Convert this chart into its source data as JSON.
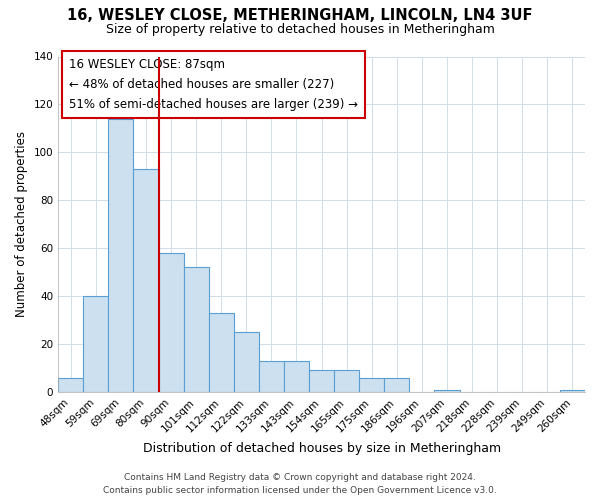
{
  "title": "16, WESLEY CLOSE, METHERINGHAM, LINCOLN, LN4 3UF",
  "subtitle": "Size of property relative to detached houses in Metheringham",
  "xlabel": "Distribution of detached houses by size in Metheringham",
  "ylabel": "Number of detached properties",
  "bar_labels": [
    "48sqm",
    "59sqm",
    "69sqm",
    "80sqm",
    "90sqm",
    "101sqm",
    "112sqm",
    "122sqm",
    "133sqm",
    "143sqm",
    "154sqm",
    "165sqm",
    "175sqm",
    "186sqm",
    "196sqm",
    "207sqm",
    "218sqm",
    "228sqm",
    "239sqm",
    "249sqm",
    "260sqm"
  ],
  "bar_values": [
    6,
    40,
    114,
    93,
    58,
    52,
    33,
    25,
    13,
    13,
    9,
    9,
    6,
    6,
    0,
    1,
    0,
    0,
    0,
    0,
    1
  ],
  "bar_color": "#cce0f0",
  "bar_edge_color": "#5a9fd4",
  "vline_color": "#cc0000",
  "ylim": [
    0,
    140
  ],
  "yticks": [
    0,
    20,
    40,
    60,
    80,
    100,
    120,
    140
  ],
  "annotation_title": "16 WESLEY CLOSE: 87sqm",
  "annotation_line1": "← 48% of detached houses are smaller (227)",
  "annotation_line2": "51% of semi-detached houses are larger (239) →",
  "annotation_box_color": "#ffffff",
  "annotation_box_edge_color": "#cc0000",
  "footer_line1": "Contains HM Land Registry data © Crown copyright and database right 2024.",
  "footer_line2": "Contains public sector information licensed under the Open Government Licence v3.0.",
  "background_color": "#ffffff",
  "grid_color": "#d0dce8"
}
